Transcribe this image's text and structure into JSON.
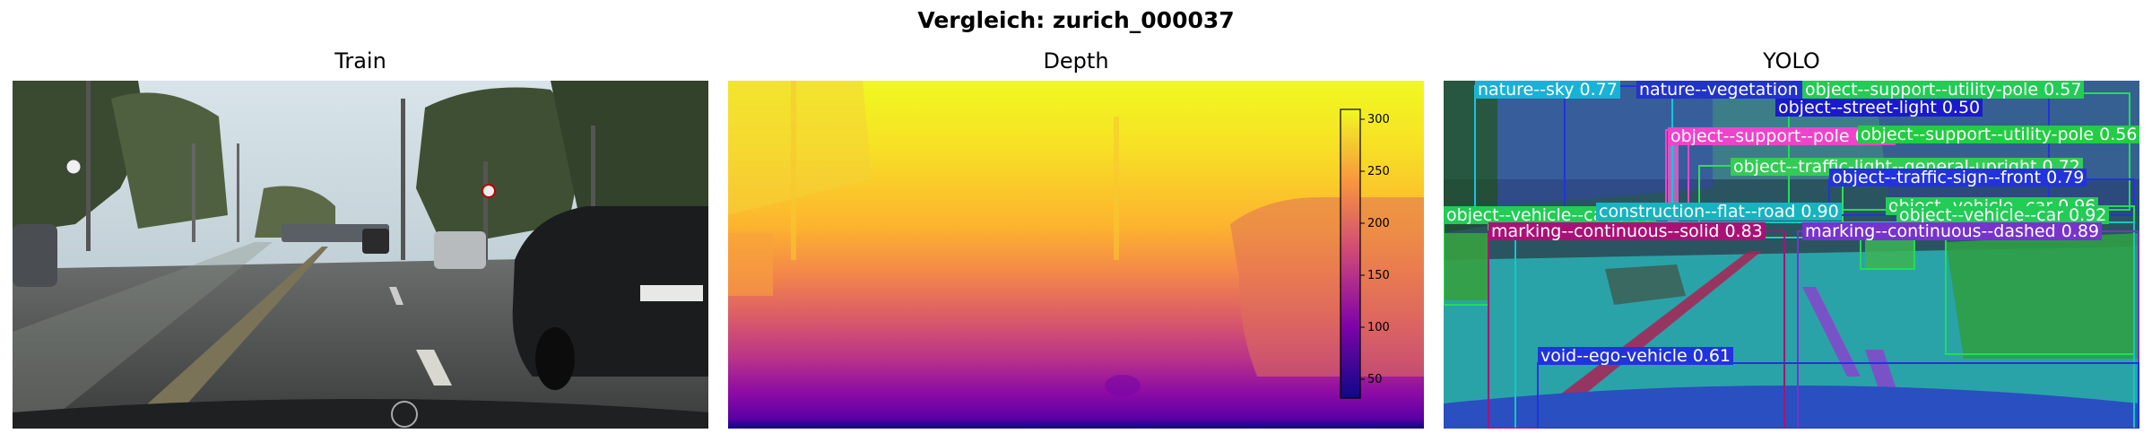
{
  "title": "Vergleich: zurich_000037",
  "panels": [
    {
      "title": "Train",
      "icon": "street-scene-photo"
    },
    {
      "title": "Depth",
      "icon": "depth-map-image"
    },
    {
      "title": "YOLO",
      "icon": "segmentation-overlay-image"
    }
  ],
  "colorbar": {
    "colormap": "plasma",
    "ticks": [
      "300",
      "250",
      "200",
      "150",
      "100",
      "50"
    ]
  },
  "detections": [
    {
      "label": "nature--sky 0.77",
      "color": "#17b3d6"
    },
    {
      "label": "nature--vegetation 0.",
      "color": "#2233cc"
    },
    {
      "label": "object--support--utility-pole 0.57",
      "color": "#22cc55"
    },
    {
      "label": "object--street-light 0.50",
      "color": "#1a1acc"
    },
    {
      "label": "object--support--pole 0.81",
      "color": "#ee44cc"
    },
    {
      "label": "object--support--utility-pole 0.56",
      "color": "#22cc44"
    },
    {
      "label": "object--traffic-light--general-upright 0.72",
      "color": "#33cc55"
    },
    {
      "label": "object--traffic-sign--front 0.79",
      "color": "#2233dd"
    },
    {
      "label": "object--vehicle--car 0.96",
      "color": "#22cc55"
    },
    {
      "label": "object--vehicle--car 0.93",
      "color": "#22cc55"
    },
    {
      "label": "construction--flat--road 0.90",
      "color": "#17b3c0"
    },
    {
      "label": "object--vehicle--car 0.92",
      "color": "#22cc55"
    },
    {
      "label": "marking--continuous--solid 0.83",
      "color": "#aa1177"
    },
    {
      "label": "marking--continuous--dashed 0.89",
      "color": "#7733cc"
    },
    {
      "label": "void--ego-vehicle 0.61",
      "color": "#2233dd"
    }
  ]
}
